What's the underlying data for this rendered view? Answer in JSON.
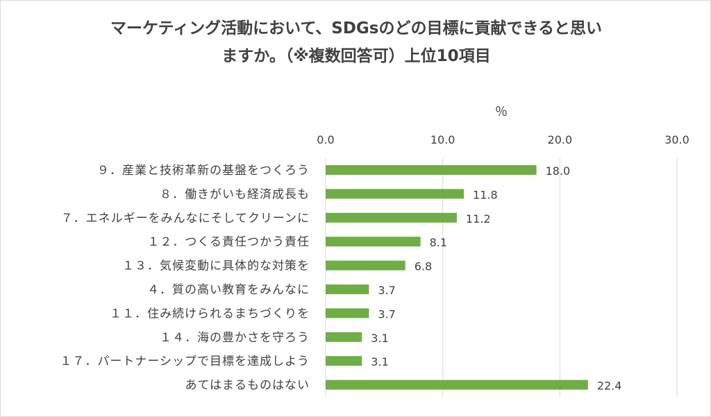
{
  "chart_data": {
    "type": "bar",
    "orientation": "horizontal",
    "title_lines": [
      "マーケティング活動において、SDGsのどの目標に貢献できると思い",
      "ますか。（※複数回答可）上位10項目"
    ],
    "unit_label": "％",
    "categories": [
      "９．産業と技術革新の基盤をつくろう",
      "８．働きがいも経済成長も",
      "７．エネルギーをみんなにそしてクリーンに",
      "１２．つくる責任つかう責任",
      "１３．気候変動に具体的な対策を",
      "４．質の高い教育をみんなに",
      "１１．住み続けられるまちづくりを",
      "１４．海の豊かさを守ろう",
      "１７．パートナーシップで目標を達成しよう",
      "あてはまるものはない"
    ],
    "values": [
      18.0,
      11.8,
      11.2,
      8.1,
      6.8,
      3.7,
      3.7,
      3.1,
      3.1,
      22.4
    ],
    "value_labels": [
      "18.0",
      "11.8",
      "11.2",
      "8.1",
      "6.8",
      "3.7",
      "3.7",
      "3.1",
      "3.1",
      "22.4"
    ],
    "xlim": [
      0,
      30
    ],
    "ticks": [
      "0.0",
      "10.0",
      "20.0",
      "30.0"
    ],
    "tick_values": [
      0,
      10,
      20,
      30
    ],
    "bar_color": "#70ad47",
    "grid": true,
    "axis_position": "top",
    "legend": "none"
  }
}
